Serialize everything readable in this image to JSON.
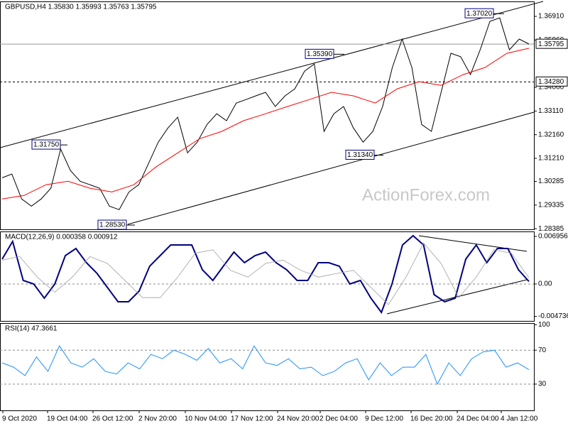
{
  "chart_data": [
    {
      "type": "line",
      "title": "GBPUSD,H4 1.35830 1.35993 1.35763 1.35795",
      "watermark": "ActionForex.com",
      "ylim": [
        1.2836,
        1.3751
      ],
      "yticks": [
        {
          "value": 1.3691,
          "label": "1.36910"
        },
        {
          "value": 1.3596,
          "label": "1.35960"
        },
        {
          "value": 1.3406,
          "label": "1.34060"
        },
        {
          "value": 1.3311,
          "label": "1.33110"
        },
        {
          "value": 1.3216,
          "label": "1.32160"
        },
        {
          "value": 1.3121,
          "label": "1.31210"
        },
        1.30285,
        1.29335,
        1.28385
      ],
      "x_labels": [
        "9 Oct 2020",
        "19 Oct 04:00",
        "26 Oct 12:00",
        "2 Nov 20:00",
        "10 Nov 04:00",
        "17 Nov 12:00",
        "24 Nov 20:00",
        "2 Dec 04:00",
        "9 Dec 12:00",
        "16 Dec 20:00",
        "24 Dec 04:00",
        "4 Jan 12:00"
      ],
      "series": [
        {
          "name": "GBPUSD",
          "color": "#000000",
          "values": [
            1.3043,
            1.3058,
            1.2958,
            1.2929,
            1.2958,
            1.3001,
            1.3158,
            1.3072,
            1.3029,
            1.3015,
            1.3001,
            1.2929,
            1.2915,
            1.2986,
            1.3015,
            1.31,
            1.3186,
            1.3243,
            1.3286,
            1.3143,
            1.3186,
            1.3257,
            1.33,
            1.3272,
            1.3343,
            1.3357,
            1.3372,
            1.3386,
            1.3329,
            1.3372,
            1.34,
            1.3471,
            1.35,
            1.3229,
            1.33,
            1.3329,
            1.3243,
            1.3186,
            1.3229,
            1.3329,
            1.3486,
            1.36,
            1.3486,
            1.3257,
            1.3229,
            1.3386,
            1.3543,
            1.3529,
            1.3457,
            1.3557,
            1.3671,
            1.3685,
            1.3557,
            1.36,
            1.358
          ]
        },
        {
          "name": "MA",
          "color": "#ff0000",
          "values": [
            1.2958,
            1.2972,
            1.3015,
            1.3029,
            1.3001,
            1.2986,
            1.3015,
            1.3086,
            1.3143,
            1.32,
            1.3229,
            1.3272,
            1.33,
            1.3329,
            1.3357,
            1.3386,
            1.3372,
            1.3343,
            1.34,
            1.3429,
            1.3414,
            1.3457,
            1.3486,
            1.3543,
            1.3563
          ]
        }
      ],
      "annotations": [
        {
          "value": 1.3702,
          "label": "1.37020"
        },
        {
          "value": 1.3539,
          "label": "1.35390"
        },
        {
          "value": 1.3175,
          "label": "1.31750"
        },
        {
          "value": 1.3134,
          "label": "1.31340"
        },
        {
          "value": 1.2853,
          "label": "1.28530"
        }
      ],
      "levels": [
        {
          "value": 1.3428,
          "label": "1.34280",
          "style": "dashed"
        },
        {
          "value": 1.35795,
          "label": "1.35795",
          "style": "solid"
        }
      ]
    },
    {
      "type": "line",
      "title": "MACD(12,26,9) 0.000358 0.000912",
      "ylim": [
        -0.0054,
        0.00768
      ],
      "yticks": [
        0.006956,
        {
          "value": 0,
          "label": "0.00"
        },
        -0.004736
      ],
      "series": [
        {
          "name": "MACD",
          "color": "#000080",
          "values": [
            0.00363,
            0.00623,
            0.00052,
            0,
            -0.00208,
            0,
            0.00415,
            0.00519,
            0.00311,
            0.00156,
            -0.00052,
            -0.0026,
            -0.0026,
            -0.00104,
            0.0026,
            0.00415,
            0.00571,
            0.00571,
            0.00571,
            0.00208,
            0.00052,
            0.0026,
            0.00467,
            0.00311,
            0.00415,
            0.00467,
            0.00311,
            0.00208,
            0.00052,
            0.00052,
            0.00311,
            0.00311,
            0.0026,
            0,
            0.00052,
            -0.00208,
            -0.00415,
            0,
            0.00571,
            0.00706,
            0.00571,
            -0.00156,
            -0.0026,
            -0.00208,
            0.00363,
            0.00571,
            0.00311,
            0.00519,
            0.00519,
            0.00208,
            0.00036
          ]
        },
        {
          "name": "Signal",
          "color": "#a0a0a0",
          "values": [
            0.0035,
            0.004,
            0.001,
            -0.0012,
            0.001,
            0.004,
            0.003,
            0.0005,
            -0.002,
            -0.002,
            0.001,
            0.0045,
            0.005,
            0.002,
            0.001,
            0.003,
            0.0035,
            0.002,
            0.001,
            0.0015,
            0.002,
            -0.0005,
            -0.003,
            0.001,
            0.006,
            0.003,
            -0.002,
            0.001,
            0.005,
            0.0045,
            0.0009
          ]
        }
      ]
    },
    {
      "type": "line",
      "title": "RSI(14) 47.3661",
      "ylim": [
        -1,
        102
      ],
      "yticks": [
        100,
        70,
        30
      ],
      "levels": [
        70,
        30
      ],
      "series": [
        {
          "name": "RSI",
          "color": "#1e90ff",
          "values": [
            55,
            50,
            40,
            62,
            45,
            75,
            55,
            50,
            60,
            45,
            42,
            55,
            48,
            65,
            60,
            70,
            65,
            58,
            72,
            55,
            60,
            48,
            75,
            55,
            52,
            60,
            48,
            50,
            40,
            45,
            55,
            60,
            35,
            55,
            40,
            50,
            50,
            65,
            30,
            55,
            40,
            60,
            68,
            70,
            50,
            55,
            47
          ]
        }
      ]
    }
  ]
}
